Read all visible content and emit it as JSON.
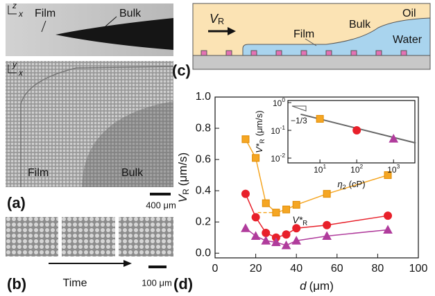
{
  "panel_a": {
    "label": "(a)",
    "side_view": {
      "axis_z": "z",
      "axis_x": "x",
      "film": "Film",
      "bulk": "Bulk"
    },
    "top_view": {
      "axis_y": "y",
      "axis_x": "x",
      "film": "Film",
      "bulk": "Bulk"
    },
    "scale_bar": "400 μm"
  },
  "panel_b": {
    "label": "(b)",
    "arrow": "Time",
    "scale_bar": "100 μm"
  },
  "panel_c": {
    "label": "(c)",
    "velocity": {
      "symbol": "V",
      "subscript": "R"
    },
    "film": "Film",
    "bulk": "Bulk",
    "oil": "Oil",
    "water": "Water"
  },
  "panel_d_label": "(d)",
  "chart_data": [
    {
      "type": "line",
      "x_label": {
        "symbol": "d",
        "unit": "(μm)"
      },
      "y_label": {
        "symbol": "V",
        "subscript": "R",
        "unit": "(μm/s)"
      },
      "x": [
        15,
        20,
        25,
        30,
        35,
        40,
        55,
        85
      ],
      "series": [
        {
          "color": "#f5a623",
          "marker": "square",
          "values": [
            0.73,
            0.61,
            0.32,
            0.26,
            0.28,
            0.31,
            0.38,
            0.5
          ]
        },
        {
          "color": "#e8202a",
          "marker": "circle",
          "values": [
            0.38,
            0.23,
            0.13,
            0.1,
            0.12,
            0.16,
            0.18,
            0.24
          ]
        },
        {
          "color": "#b03c9c",
          "marker": "triangle",
          "values": [
            0.16,
            0.11,
            0.08,
            0.07,
            0.05,
            0.08,
            0.11,
            0.15
          ]
        }
      ],
      "annotation": {
        "symbol": "V*",
        "subscript": "R"
      },
      "xlim": [
        0,
        100
      ],
      "xticks": [
        0,
        20,
        40,
        60,
        80,
        100
      ],
      "ylim": [
        -0.03,
        1.0
      ],
      "yticks": [
        {
          "value": 0,
          "label": "0.0"
        },
        0.2,
        0.4,
        0.6,
        0.8,
        {
          "value": 1,
          "label": "1.0"
        }
      ]
    },
    {
      "type": "scatter",
      "log_x": true,
      "log_y": true,
      "x_label": {
        "symbol": "η",
        "subscript": "2",
        "unit": "(cP)"
      },
      "y_label": {
        "symbol": "V*",
        "subscript": "R",
        "unit": "(μm/s)"
      },
      "x": [
        10,
        100,
        1000
      ],
      "values": [
        0.26,
        0.1,
        0.05
      ],
      "colors": [
        "#f5a623",
        "#e8202a",
        "#b03c9c"
      ],
      "markers": [
        "square",
        "circle",
        "triangle"
      ],
      "fit": {
        "x": [
          3,
          4000
        ],
        "y": [
          0.38,
          0.035
        ],
        "color": "#666666"
      },
      "slope_label": "−1/3",
      "xlim": [
        1.35,
        3800
      ],
      "xticks": [
        {
          "value": 10,
          "label": {
            "base": "10",
            "exponent": "1"
          }
        },
        {
          "value": 100,
          "label": {
            "base": "10",
            "exponent": "2"
          }
        },
        {
          "value": 1000,
          "label": {
            "base": "10",
            "exponent": "3"
          }
        }
      ],
      "ylim": [
        0.0067,
        1.19
      ],
      "yticks": [
        {
          "value": 0.01,
          "label": {
            "base": "10",
            "exponent": "-2"
          }
        },
        {
          "value": 0.1,
          "label": {
            "base": "10",
            "exponent": "-1"
          }
        },
        {
          "value": 1,
          "label": {
            "base": "10",
            "exponent": "0"
          }
        }
      ]
    }
  ]
}
